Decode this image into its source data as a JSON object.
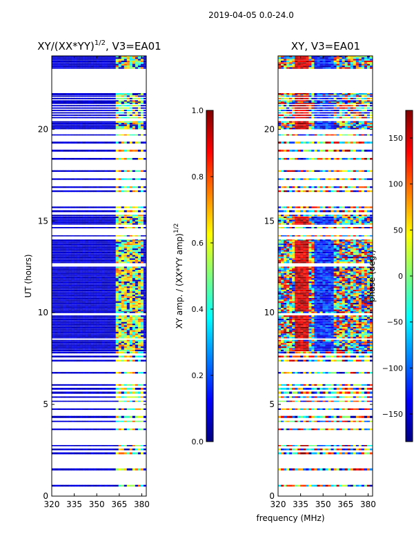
{
  "figure": {
    "suptitle": "2019-04-05 0.0-24.0",
    "shared_xlabel": "frequency (MHz)"
  },
  "colors": {
    "background": "#ffffff",
    "low": "#00008b",
    "mid": "#00ffff",
    "high": "#8b0000"
  },
  "chart_data": [
    {
      "type": "heatmap",
      "title_main": "XY/(XX*YY)",
      "title_exp": "1/2",
      "title_suffix": ", V3=EA01",
      "ylabel": "UT (hours)",
      "xticks": [
        320,
        335,
        350,
        365,
        380
      ],
      "yticks": [
        0,
        5,
        10,
        15,
        20
      ],
      "xlim": [
        320,
        383
      ],
      "ylim": [
        0,
        24
      ],
      "gap_hours": [
        22.1,
        23.3
      ],
      "colorbar": {
        "label_main": "XY amp. / (XX*YY amp)",
        "label_exp": "1/2",
        "ticks": [
          "0.0",
          "0.2",
          "0.4",
          "0.6",
          "0.8",
          "1.0"
        ],
        "range": [
          0,
          1
        ]
      }
    },
    {
      "type": "heatmap",
      "title": "XY, V3=EA01",
      "ylabel": "",
      "xticks": [
        320,
        335,
        350,
        365,
        380
      ],
      "yticks": [
        0,
        5,
        10,
        15,
        20
      ],
      "xlim": [
        320,
        383
      ],
      "ylim": [
        0,
        24
      ],
      "gap_hours": [
        22.1,
        23.3
      ],
      "colorbar": {
        "label": "phase (deg.)",
        "ticks": [
          "150",
          "100",
          "50",
          "0",
          "−50",
          "−100",
          "−150"
        ],
        "range": [
          -180,
          180
        ]
      }
    }
  ]
}
